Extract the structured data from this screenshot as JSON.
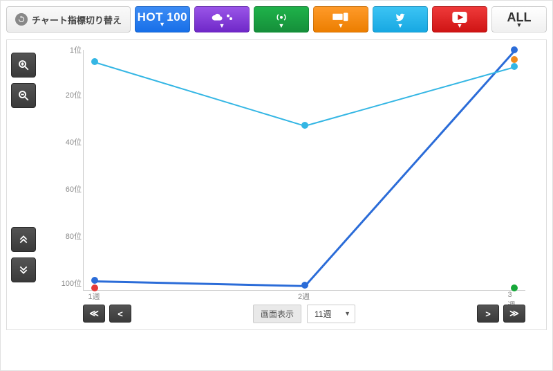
{
  "switcher_label": "チャート指標切り替え",
  "tabs": {
    "hot_label": "HOT 100",
    "all_label": "ALL"
  },
  "yaxis": {
    "ticks": [
      1,
      20,
      40,
      60,
      80,
      100
    ],
    "suffix": "位",
    "min": 1,
    "max": 100
  },
  "xaxis": {
    "categories": [
      "1週",
      "2週",
      "3週"
    ]
  },
  "series": [
    {
      "name": "hot",
      "color": "#2b6cd8",
      "width": 2.5,
      "data": [
        99,
        101,
        1
      ]
    },
    {
      "name": "sky",
      "color": "#34b6e4",
      "width": 2,
      "data": [
        6,
        33,
        8
      ]
    },
    {
      "name": "red",
      "color": "#e43a3a",
      "width": 0,
      "data": [
        102,
        null,
        null
      ]
    },
    {
      "name": "green",
      "color": "#17a83a",
      "width": 0,
      "data": [
        null,
        null,
        102
      ]
    },
    {
      "name": "orange",
      "color": "#f08a1d",
      "width": 0,
      "data": [
        null,
        null,
        5
      ]
    }
  ],
  "marker_radius": 5,
  "grid_color": "#cccccc",
  "background_color": "#ffffff",
  "bottom": {
    "screen_label": "画面表示",
    "week_select": "11週"
  }
}
